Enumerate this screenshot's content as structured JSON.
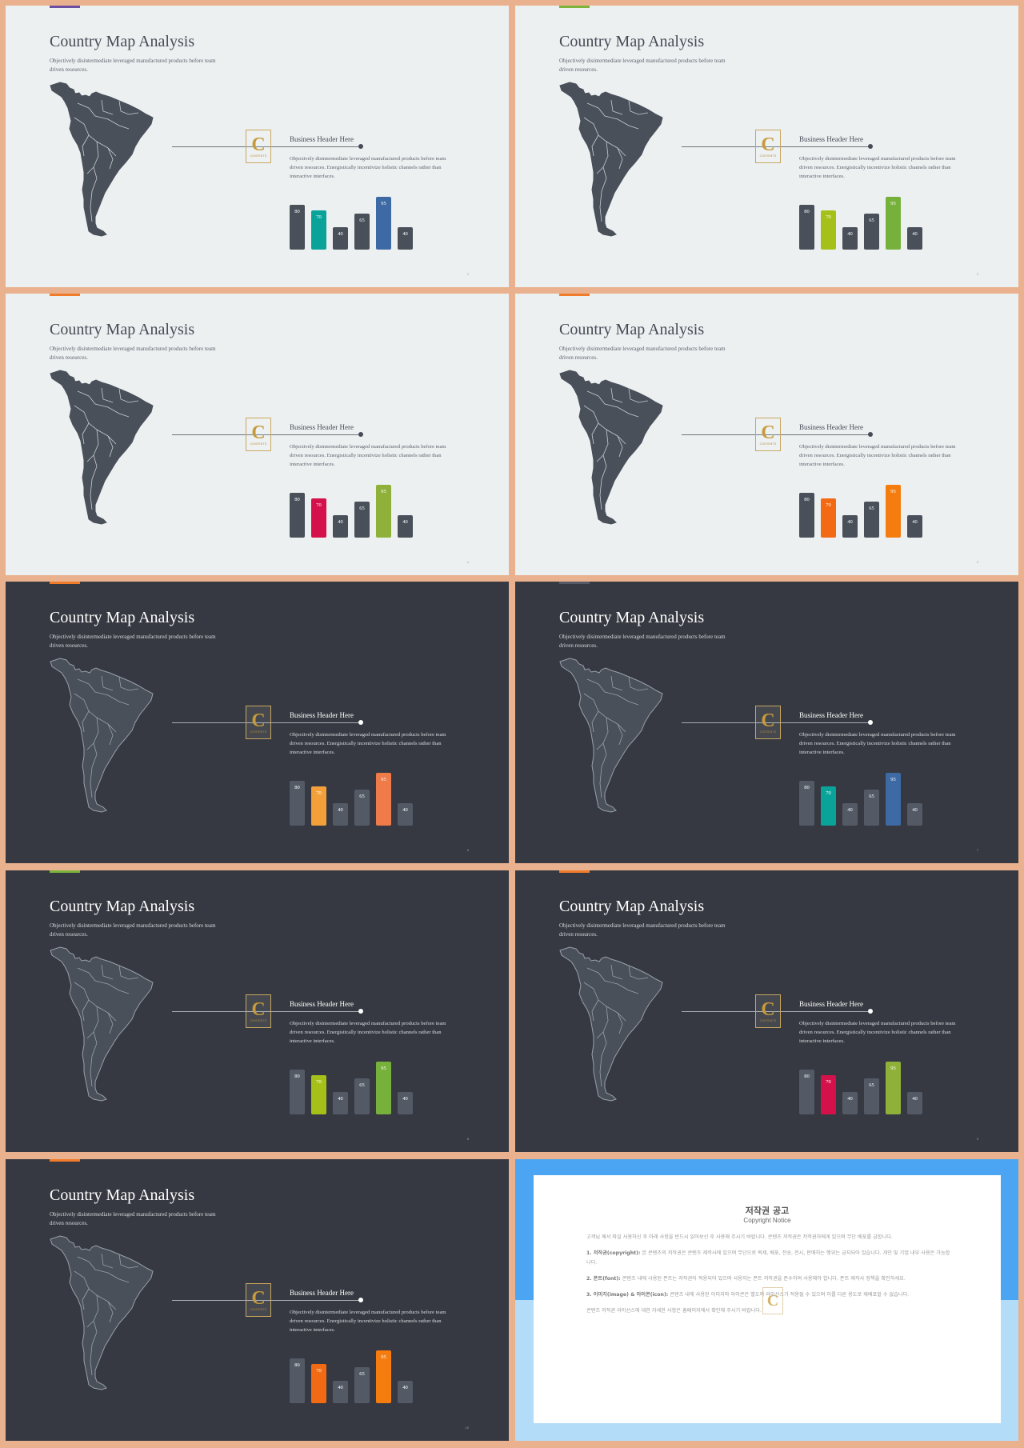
{
  "common": {
    "title": "Country Map Analysis",
    "subtitle": "Objectively disintermediate leveraged manufactured products before team driven resources.",
    "header": "Business Header Here",
    "body": "Objectively disintermediate leveraged manufactured products before team driven resources. Energistically incentivize holistic channels rather than interactive interfaces.",
    "logo_letter": "C",
    "logo_text": "CONTENTS"
  },
  "slides": [
    {
      "theme": "light",
      "accent": "#6a4fa3",
      "page": "2",
      "chart_data": {
        "type": "bar",
        "values": [
          80,
          70,
          40,
          65,
          95,
          40
        ],
        "colors": [
          "#4a505a",
          "#0aa39a",
          "#4a505a",
          "#4a505a",
          "#3d6aa4",
          "#4a505a"
        ]
      }
    },
    {
      "theme": "light",
      "accent": "#7bb33b",
      "page": "3",
      "chart_data": {
        "type": "bar",
        "values": [
          80,
          70,
          40,
          65,
          95,
          40
        ],
        "colors": [
          "#4a505a",
          "#a6c01a",
          "#4a505a",
          "#4a505a",
          "#76b13b",
          "#4a505a"
        ]
      }
    },
    {
      "theme": "light",
      "accent": "#f07b2b",
      "page": "4",
      "chart_data": {
        "type": "bar",
        "values": [
          80,
          70,
          40,
          65,
          95,
          40
        ],
        "colors": [
          "#4a505a",
          "#d5114b",
          "#4a505a",
          "#4a505a",
          "#8fb13a",
          "#4a505a"
        ]
      }
    },
    {
      "theme": "light",
      "accent": "#f07b2b",
      "page": "5",
      "chart_data": {
        "type": "bar",
        "values": [
          80,
          70,
          40,
          65,
          95,
          40
        ],
        "colors": [
          "#4a505a",
          "#f26a13",
          "#4a505a",
          "#4a505a",
          "#f57d0f",
          "#4a505a"
        ]
      }
    },
    {
      "theme": "dark",
      "accent": "#f07b2b",
      "page": "6",
      "chart_data": {
        "type": "bar",
        "values": [
          80,
          70,
          40,
          65,
          95,
          40
        ],
        "colors": [
          "#545a65",
          "#f3a03a",
          "#545a65",
          "#545a65",
          "#ef7a4a",
          "#545a65"
        ]
      }
    },
    {
      "theme": "dark",
      "accent": "#555a66",
      "page": "7",
      "chart_data": {
        "type": "bar",
        "values": [
          80,
          70,
          40,
          65,
          95,
          40
        ],
        "colors": [
          "#545a65",
          "#0aa39a",
          "#545a65",
          "#545a65",
          "#3d6aa4",
          "#545a65"
        ]
      }
    },
    {
      "theme": "dark",
      "accent": "#7bb33b",
      "page": "8",
      "chart_data": {
        "type": "bar",
        "values": [
          80,
          70,
          40,
          65,
          95,
          40
        ],
        "colors": [
          "#545a65",
          "#a6c01a",
          "#545a65",
          "#545a65",
          "#76b13b",
          "#545a65"
        ]
      }
    },
    {
      "theme": "dark",
      "accent": "#f07b2b",
      "page": "9",
      "chart_data": {
        "type": "bar",
        "values": [
          80,
          70,
          40,
          65,
          95,
          40
        ],
        "colors": [
          "#545a65",
          "#d5114b",
          "#545a65",
          "#545a65",
          "#8fb13a",
          "#545a65"
        ]
      }
    },
    {
      "theme": "dark",
      "accent": "#f07b2b",
      "page": "10",
      "chart_data": {
        "type": "bar",
        "values": [
          80,
          70,
          40,
          65,
          95,
          40
        ],
        "colors": [
          "#545a65",
          "#f26a13",
          "#545a65",
          "#545a65",
          "#f57d0f",
          "#545a65"
        ]
      }
    }
  ],
  "copyright": {
    "title": "저작권 공고",
    "subtitle": "Copyright Notice",
    "intro": "고객님 께서 파일 사용하신 후 아래 사항을 반드시 읽어보신 후 사용해 주시기 바랍니다. 콘텐츠 저작권은 저작권자에게 있으며 무단 배포를 금합니다.",
    "s1_head": "1. 저작권(copyright):",
    "s1_text": "본 콘텐츠의 저작권은 콘텐츠 제작사에 있으며 무단으로 복제, 배포, 전송, 전시, 판매하는 행위는 금지되어 있습니다. 개인 및 기업 내부 사용은 가능합니다.",
    "s2_head": "2. 폰트(font):",
    "s2_text": "콘텐츠 내에 사용된 폰트는 저작권이 적용되어 있으며 사용자는 폰트 저작권을 준수하여 사용해야 합니다. 폰트 제작사 정책을 확인하세요.",
    "s3_head": "3. 이미지(image) & 아이콘(icon):",
    "s3_text": "콘텐츠 내에 사용된 이미지와 아이콘은 별도의 라이선스가 적용될 수 있으며 이를 다른 용도로 재배포할 수 없습니다.",
    "outro": "콘텐츠 저작권 라이선스에 대한 자세한 사항은 홈페이지에서 확인해 주시기 바랍니다."
  }
}
